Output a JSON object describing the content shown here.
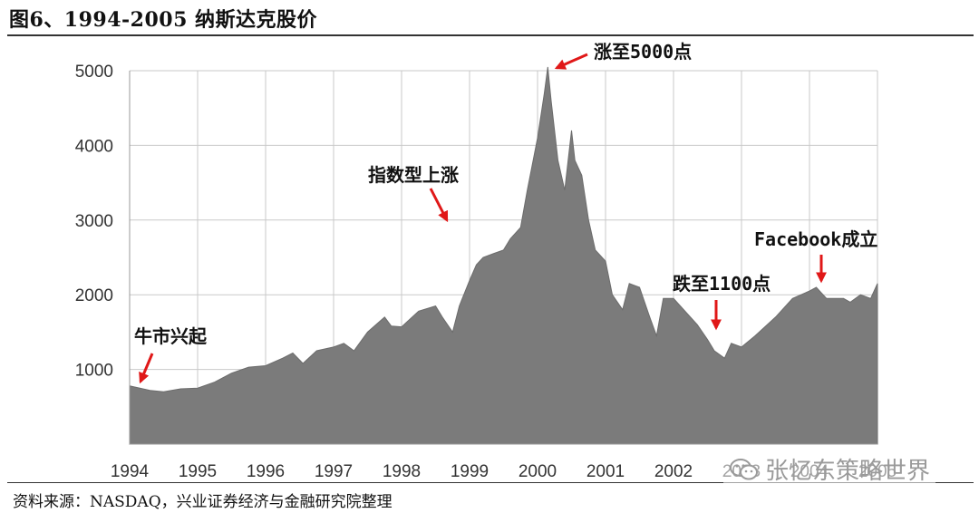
{
  "figure_title": "图6、1994-2005 纳斯达克股价",
  "source_text": "资料来源：NASDAQ，兴业证券经济与金融研究院整理",
  "watermark": {
    "text": "张忆东策略世界",
    "icon": "wechat-icon",
    "color": "#9a9a9a"
  },
  "colors": {
    "area_fill": "#7b7b7b",
    "grid": "#c9c9c9",
    "arrow": "#e01818"
  },
  "chart_data": {
    "type": "area",
    "title": "",
    "xlabel": "",
    "ylabel": "",
    "grid": true,
    "xlim": [
      1994.0,
      2005.0
    ],
    "ylim": [
      0,
      5000
    ],
    "x_ticks": [
      "1994",
      "1995",
      "1996",
      "1997",
      "1998",
      "1999",
      "2000",
      "2001",
      "2002",
      "2003",
      "2004",
      "2005"
    ],
    "y_ticks": [
      "1000",
      "2000",
      "3000",
      "4000",
      "5000"
    ],
    "series": [
      {
        "x": [
          1994.0,
          1994.15,
          1994.3,
          1994.5,
          1994.75,
          1995.0,
          1995.25,
          1995.5,
          1995.75,
          1996.0,
          1996.25,
          1996.4,
          1996.55,
          1996.75,
          1997.0,
          1997.15,
          1997.3,
          1997.5,
          1997.75,
          1997.85,
          1998.0,
          1998.25,
          1998.5,
          1998.6,
          1998.75,
          1998.85,
          1999.0,
          1999.1,
          1999.2,
          1999.35,
          1999.5,
          1999.6,
          1999.75,
          1999.85,
          2000.0,
          2000.1,
          2000.15,
          2000.2,
          2000.3,
          2000.4,
          2000.5,
          2000.55,
          2000.65,
          2000.75,
          2000.85,
          2001.0,
          2001.1,
          2001.25,
          2001.35,
          2001.5,
          2001.65,
          2001.75,
          2001.85,
          2002.0,
          2002.2,
          2002.35,
          2002.5,
          2002.6,
          2002.75,
          2002.85,
          2003.0,
          2003.2,
          2003.5,
          2003.75,
          2004.0,
          2004.1,
          2004.25,
          2004.5,
          2004.6,
          2004.75,
          2004.9,
          2005.0
        ],
        "values": [
          780,
          750,
          720,
          700,
          740,
          750,
          830,
          950,
          1030,
          1050,
          1150,
          1220,
          1080,
          1250,
          1300,
          1350,
          1250,
          1500,
          1700,
          1580,
          1570,
          1780,
          1850,
          1700,
          1500,
          1850,
          2190,
          2400,
          2500,
          2550,
          2600,
          2750,
          2900,
          3400,
          4100,
          4700,
          5050,
          4600,
          3800,
          3400,
          4200,
          3800,
          3600,
          3000,
          2600,
          2450,
          2000,
          1800,
          2150,
          2100,
          1700,
          1450,
          1950,
          1950,
          1750,
          1600,
          1400,
          1250,
          1150,
          1350,
          1300,
          1450,
          1700,
          1950,
          2050,
          2100,
          1950,
          1950,
          1900,
          2000,
          1950,
          2150
        ]
      }
    ],
    "annotations": [
      {
        "text": "牛市兴起",
        "x": 1994.1,
        "y": 780
      },
      {
        "text": "指数型上涨",
        "x": 1998.75,
        "y": 3000
      },
      {
        "text": "涨至5000点",
        "x": 2000.15,
        "y": 5050
      },
      {
        "text": "跌至1100点",
        "x": 2002.7,
        "y": 1400
      },
      {
        "text": "Facebook成立",
        "x": 2004.2,
        "y": 2100
      }
    ]
  }
}
